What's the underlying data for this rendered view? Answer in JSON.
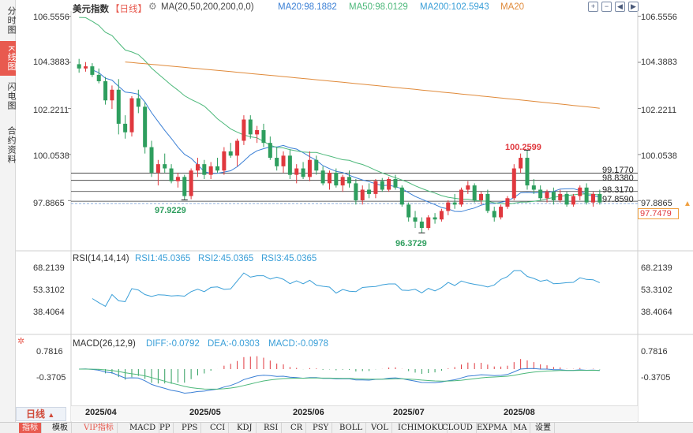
{
  "sidebar": {
    "tabs": [
      {
        "label": "分时图",
        "active": false
      },
      {
        "label": "K线图",
        "active": true
      },
      {
        "label": "闪电图",
        "active": false
      },
      {
        "label": "合约资料",
        "active": false
      }
    ]
  },
  "header": {
    "symbol": "美元指数",
    "period": "【日线】",
    "ma_text": "MA(20,50,200,200,0,0)",
    "ma20_text": "MA20:98.1882",
    "ma50_text": "MA50:98.0129",
    "ma200_text": "MA200:102.5943",
    "ma20b_text": "MA20",
    "icons": [
      "add-icon",
      "minus-icon",
      "left-icon",
      "right-icon"
    ]
  },
  "rsi_header": {
    "label": "RSI(14,14,14)",
    "rsi1": "RSI1:45.0365",
    "rsi2": "RSI2:45.0365",
    "rsi3": "RSI3:45.0365"
  },
  "macd_header": {
    "label": "MACD(26,12,9)",
    "diff": "DIFF:-0.0792",
    "dea": "DEA:-0.0303",
    "macd": "MACD:-0.0978"
  },
  "price_axis": [
    "106.5556",
    "104.3883",
    "102.2211",
    "100.0538",
    "97.8865"
  ],
  "rsi_axis": [
    "68.2139",
    "53.3102",
    "38.4064"
  ],
  "macd_axis": [
    "0.7816",
    "-0.3705"
  ],
  "current_price": "97.7479",
  "levels": [
    {
      "label": "99.1770",
      "value": 99.177
    },
    {
      "label": "98.8380",
      "value": 98.838
    },
    {
      "label": "98.3170",
      "value": 98.317
    },
    {
      "label": "97.8590",
      "value": 97.859
    }
  ],
  "annotations": {
    "high": "100.2599",
    "low1": "97.9229",
    "low2": "96.3729"
  },
  "dates": [
    "2025/04",
    "2025/05",
    "2025/06",
    "2025/07",
    "2025/08"
  ],
  "period_button": "日线",
  "bottom_tabs": [
    "指标",
    "模板",
    "VIP指标",
    "MACD",
    "PP",
    "PPS",
    "CCI",
    "KDJ",
    "RSI",
    "CR",
    "PSY",
    "BOLL",
    "VOL",
    "ICHIMOKU",
    "CLOUD",
    "EXPMA",
    "MA",
    "设置"
  ],
  "colors": {
    "up": "#e0383e",
    "down": "#2e9e5e",
    "ma20": "#3a7fd5",
    "ma50": "#4cb87a",
    "ma200": "#e08a3a",
    "rsi": "#3a9fd8",
    "accent": "#e85a4f"
  },
  "chart_data": {
    "type": "candlestick",
    "title": "美元指数 日线",
    "ylim": [
      95.6,
      106.8
    ],
    "candles": [
      [
        104.3,
        104.55,
        103.9,
        104.1
      ],
      [
        104.1,
        104.4,
        103.95,
        104.2
      ],
      [
        104.2,
        104.35,
        103.7,
        103.8
      ],
      [
        103.8,
        104.1,
        103.4,
        103.5
      ],
      [
        103.5,
        103.7,
        102.4,
        102.6
      ],
      [
        102.6,
        103.3,
        102.2,
        103.1
      ],
      [
        103.1,
        103.6,
        101.0,
        101.5
      ],
      [
        101.5,
        101.9,
        100.8,
        101.1
      ],
      [
        101.1,
        102.8,
        100.9,
        102.7
      ],
      [
        102.7,
        103.1,
        102.0,
        102.3
      ],
      [
        102.3,
        102.5,
        100.1,
        100.4
      ],
      [
        100.4,
        100.7,
        99.0,
        99.2
      ],
      [
        99.2,
        99.8,
        98.6,
        99.6
      ],
      [
        99.6,
        100.1,
        99.2,
        99.4
      ],
      [
        99.4,
        99.6,
        98.7,
        98.8
      ],
      [
        98.8,
        99.2,
        98.5,
        99.0
      ],
      [
        99.0,
        99.1,
        97.92,
        98.1
      ],
      [
        98.1,
        99.4,
        97.95,
        99.3
      ],
      [
        99.3,
        99.9,
        99.0,
        99.6
      ],
      [
        99.6,
        99.8,
        98.9,
        99.1
      ],
      [
        99.1,
        99.7,
        98.9,
        99.5
      ],
      [
        99.5,
        99.9,
        99.2,
        99.3
      ],
      [
        99.3,
        100.4,
        99.1,
        100.2
      ],
      [
        100.2,
        100.6,
        99.9,
        100.0
      ],
      [
        100.0,
        100.8,
        99.5,
        100.7
      ],
      [
        100.7,
        101.9,
        100.5,
        101.7
      ],
      [
        101.7,
        101.9,
        100.8,
        101.0
      ],
      [
        101.0,
        101.4,
        100.6,
        101.2
      ],
      [
        101.2,
        101.5,
        100.4,
        100.6
      ],
      [
        100.6,
        100.9,
        99.8,
        99.9
      ],
      [
        99.9,
        100.4,
        99.3,
        99.5
      ],
      [
        99.5,
        100.2,
        99.2,
        100.0
      ],
      [
        100.0,
        100.3,
        98.9,
        99.1
      ],
      [
        99.1,
        99.6,
        98.7,
        99.4
      ],
      [
        99.4,
        99.7,
        98.9,
        99.0
      ],
      [
        99.0,
        100.2,
        98.8,
        99.8
      ],
      [
        99.8,
        100.0,
        99.1,
        99.3
      ],
      [
        99.3,
        99.5,
        98.6,
        98.7
      ],
      [
        98.7,
        99.3,
        98.4,
        99.2
      ],
      [
        99.2,
        99.4,
        98.5,
        98.6
      ],
      [
        98.6,
        99.1,
        98.3,
        99.0
      ],
      [
        99.0,
        99.3,
        98.5,
        98.7
      ],
      [
        98.7,
        98.9,
        97.7,
        97.9
      ],
      [
        97.9,
        98.6,
        97.7,
        98.4
      ],
      [
        98.4,
        98.7,
        98.0,
        98.2
      ],
      [
        98.2,
        98.9,
        98.0,
        98.8
      ],
      [
        98.8,
        98.95,
        98.3,
        98.4
      ],
      [
        98.4,
        99.0,
        98.3,
        98.9
      ],
      [
        98.9,
        99.1,
        98.4,
        98.5
      ],
      [
        98.5,
        98.6,
        97.6,
        97.7
      ],
      [
        97.7,
        97.8,
        96.9,
        97.1
      ],
      [
        97.1,
        97.4,
        96.6,
        96.9
      ],
      [
        96.9,
        97.1,
        96.37,
        96.6
      ],
      [
        96.6,
        97.2,
        96.5,
        97.1
      ],
      [
        97.1,
        97.3,
        96.8,
        97.0
      ],
      [
        97.0,
        97.5,
        96.9,
        97.4
      ],
      [
        97.4,
        97.9,
        97.2,
        97.8
      ],
      [
        97.8,
        98.2,
        97.5,
        97.7
      ],
      [
        97.7,
        98.5,
        97.6,
        98.4
      ],
      [
        98.4,
        98.8,
        98.2,
        98.6
      ],
      [
        98.6,
        98.7,
        97.8,
        97.9
      ],
      [
        97.9,
        98.3,
        97.7,
        98.2
      ],
      [
        98.2,
        98.4,
        97.3,
        97.4
      ],
      [
        97.4,
        97.6,
        96.9,
        97.1
      ],
      [
        97.1,
        97.7,
        97.0,
        97.6
      ],
      [
        97.6,
        98.1,
        97.5,
        98.0
      ],
      [
        98.0,
        99.6,
        97.9,
        99.4
      ],
      [
        99.4,
        100.1,
        99.2,
        99.9
      ],
      [
        99.9,
        100.26,
        98.4,
        98.6
      ],
      [
        98.6,
        98.9,
        98.2,
        98.4
      ],
      [
        98.4,
        98.6,
        97.9,
        98.0
      ],
      [
        98.0,
        98.4,
        97.8,
        98.3
      ],
      [
        98.3,
        98.5,
        97.7,
        97.9
      ],
      [
        97.9,
        98.4,
        97.8,
        98.2
      ],
      [
        98.2,
        98.3,
        97.6,
        97.7
      ],
      [
        97.7,
        98.2,
        97.6,
        98.1
      ],
      [
        98.1,
        98.6,
        97.9,
        98.5
      ],
      [
        98.5,
        98.7,
        97.7,
        97.8
      ],
      [
        97.8,
        98.3,
        97.6,
        98.2
      ],
      [
        98.2,
        98.4,
        97.7,
        97.8
      ]
    ]
  }
}
